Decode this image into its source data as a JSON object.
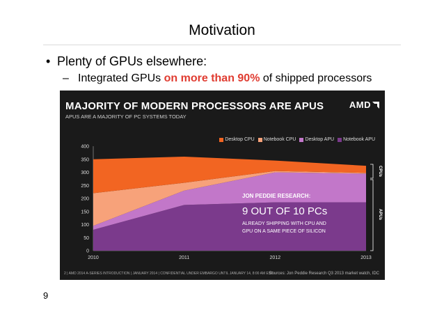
{
  "slide": {
    "title": "Motivation",
    "bullet": "Plenty of GPUs elsewhere:",
    "bullet_marker": "•",
    "sub_dash": "–",
    "sub_prefix": "Integrated GPUs ",
    "sub_highlight": "on more than 90%",
    "sub_suffix": " of shipped processors",
    "page_number": "9"
  },
  "panel": {
    "title": "MAJORITY OF MODERN PROCESSORS ARE APUS",
    "subtitle": "APUS ARE A MAJORITY OF PC SYSTEMS TODAY",
    "logo": "AMD",
    "footer_left": "2   |  AMD 2014 A-SERIES INTRODUCTION  |  JANUARY 2014   |   CONFIDENTIAL UNDER EMBARGO UNTIL JANUARY 14, 8:00 AM EST",
    "footer_right": "Sources: Jon Peddie Research Q3 2013 market watch, IDC",
    "annotation": {
      "head": "JON PEDDIE RESEARCH:",
      "main": "9 OUT OF 10 PCs",
      "body1": "ALREADY SHIPPING WITH CPU AND",
      "body2": "GPU ON A SAME PIECE OF SILICON"
    },
    "side_labels": {
      "cpus": "CPUs",
      "apus": "APUs"
    }
  },
  "colors": {
    "desktop_cpu": "#f26522",
    "notebook_cpu": "#f7a27a",
    "desktop_apu": "#c277c9",
    "notebook_apu": "#7b3a8c"
  },
  "chart_data": {
    "type": "area",
    "stacked": true,
    "x": [
      "2010",
      "2011",
      "2012",
      "2013"
    ],
    "ylim": [
      0,
      400
    ],
    "yticks": [
      0,
      50,
      100,
      150,
      200,
      250,
      300,
      350,
      400
    ],
    "legend_position": "top-right",
    "series": [
      {
        "name": "Notebook APU",
        "values": [
          80,
          175,
          185,
          185
        ]
      },
      {
        "name": "Desktop APU",
        "values": [
          15,
          55,
          115,
          110
        ]
      },
      {
        "name": "Notebook CPU",
        "values": [
          125,
          30,
          5,
          3
        ]
      },
      {
        "name": "Desktop CPU",
        "values": [
          130,
          100,
          40,
          27
        ]
      }
    ],
    "legend": [
      "Desktop CPU",
      "Notebook CPU",
      "Desktop APU",
      "Notebook APU"
    ]
  }
}
